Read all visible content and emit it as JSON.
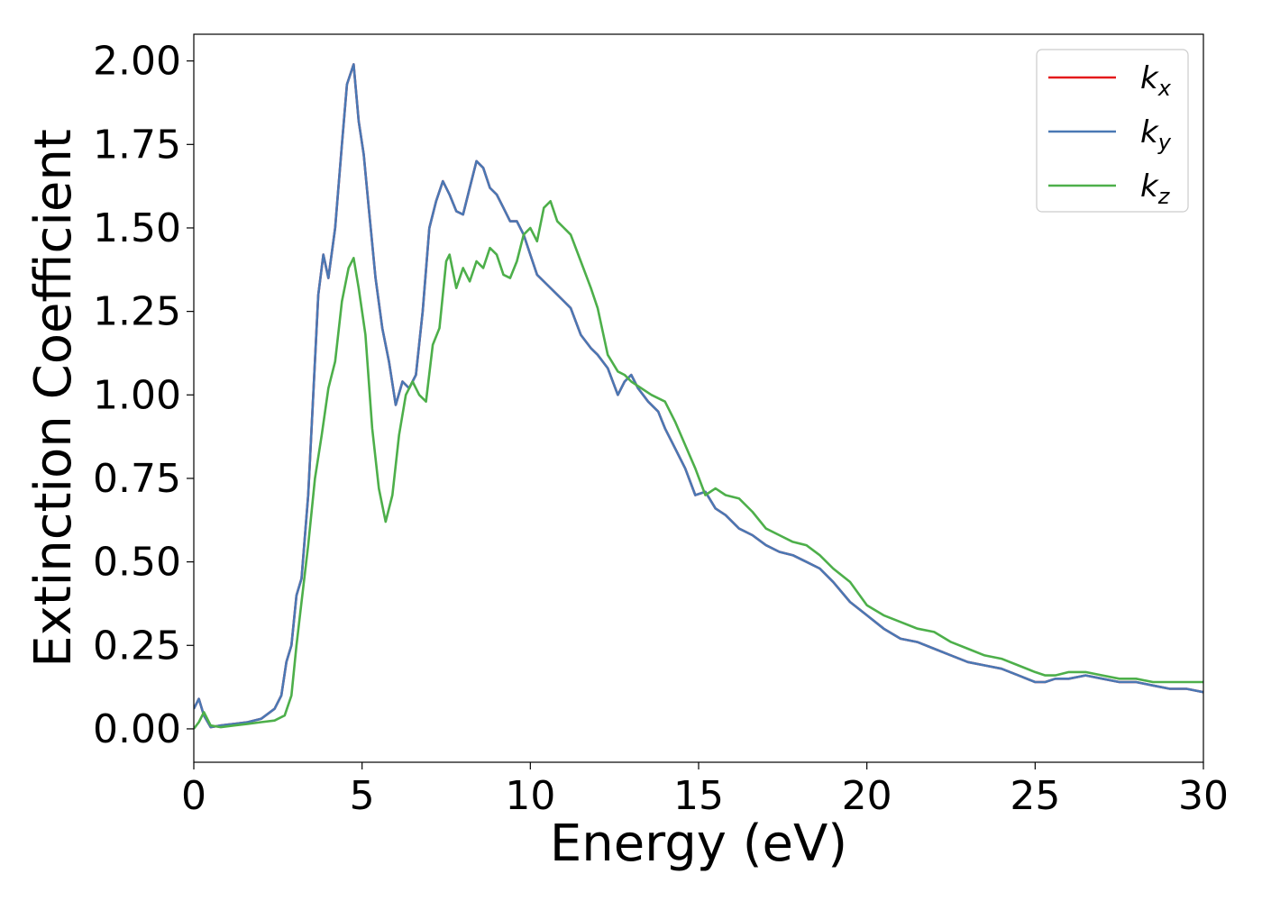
{
  "chart_data": {
    "type": "line",
    "xlabel": "Energy (eV)",
    "ylabel": "Extinction Coefficient",
    "xlim": [
      0,
      30
    ],
    "ylim": [
      -0.1,
      2.08
    ],
    "xticks": [
      0,
      5,
      10,
      15,
      20,
      25,
      30
    ],
    "xtick_labels": [
      "0",
      "5",
      "10",
      "15",
      "20",
      "25",
      "30"
    ],
    "yticks": [
      0.0,
      0.25,
      0.5,
      0.75,
      1.0,
      1.25,
      1.5,
      1.75,
      2.0
    ],
    "ytick_labels": [
      "0.00",
      "0.25",
      "0.50",
      "0.75",
      "1.00",
      "1.25",
      "1.50",
      "1.75",
      "2.00"
    ],
    "grid": false,
    "legend_position": "top-right",
    "series": [
      {
        "name": "k_x",
        "legend_base": "k",
        "legend_sub": "x",
        "color": "#e41a1c",
        "x": [
          0,
          0.15,
          0.3,
          0.5,
          0.8,
          1.2,
          1.6,
          2.0,
          2.4,
          2.6,
          2.75,
          2.9,
          3.05,
          3.2,
          3.4,
          3.55,
          3.7,
          3.85,
          4.0,
          4.2,
          4.4,
          4.55,
          4.75,
          4.9,
          5.05,
          5.2,
          5.4,
          5.6,
          5.8,
          6.0,
          6.2,
          6.4,
          6.6,
          6.8,
          7.0,
          7.2,
          7.4,
          7.6,
          7.8,
          8.0,
          8.2,
          8.4,
          8.6,
          8.8,
          9.0,
          9.2,
          9.4,
          9.6,
          9.8,
          10.0,
          10.2,
          10.5,
          10.8,
          11.0,
          11.2,
          11.5,
          11.8,
          12.0,
          12.3,
          12.6,
          12.8,
          13.0,
          13.2,
          13.5,
          13.8,
          14.0,
          14.3,
          14.6,
          14.9,
          15.2,
          15.5,
          15.8,
          16.2,
          16.6,
          17.0,
          17.4,
          17.8,
          18.2,
          18.6,
          19.0,
          19.5,
          20.0,
          20.5,
          21.0,
          21.5,
          22.0,
          22.5,
          23.0,
          23.5,
          24.0,
          24.5,
          25.0,
          25.3,
          25.6,
          26.0,
          26.5,
          27.0,
          27.5,
          28.0,
          28.5,
          29.0,
          29.5,
          30.0
        ],
        "values": [
          0.06,
          0.09,
          0.04,
          0.005,
          0.01,
          0.015,
          0.02,
          0.03,
          0.06,
          0.1,
          0.2,
          0.25,
          0.4,
          0.45,
          0.7,
          1.0,
          1.3,
          1.42,
          1.35,
          1.5,
          1.75,
          1.93,
          1.99,
          1.82,
          1.72,
          1.56,
          1.35,
          1.2,
          1.1,
          0.97,
          1.04,
          1.02,
          1.06,
          1.25,
          1.5,
          1.58,
          1.64,
          1.6,
          1.55,
          1.54,
          1.62,
          1.7,
          1.68,
          1.62,
          1.6,
          1.56,
          1.52,
          1.52,
          1.48,
          1.42,
          1.36,
          1.33,
          1.3,
          1.28,
          1.26,
          1.18,
          1.14,
          1.12,
          1.08,
          1.0,
          1.04,
          1.06,
          1.02,
          0.98,
          0.95,
          0.9,
          0.84,
          0.78,
          0.7,
          0.71,
          0.66,
          0.64,
          0.6,
          0.58,
          0.55,
          0.53,
          0.52,
          0.5,
          0.48,
          0.44,
          0.38,
          0.34,
          0.3,
          0.27,
          0.26,
          0.24,
          0.22,
          0.2,
          0.19,
          0.18,
          0.16,
          0.14,
          0.14,
          0.15,
          0.15,
          0.16,
          0.15,
          0.14,
          0.14,
          0.13,
          0.12,
          0.12,
          0.11
        ]
      },
      {
        "name": "k_y",
        "legend_base": "k",
        "legend_sub": "y",
        "color": "#4a78b4",
        "x": [
          0,
          0.15,
          0.3,
          0.5,
          0.8,
          1.2,
          1.6,
          2.0,
          2.4,
          2.6,
          2.75,
          2.9,
          3.05,
          3.2,
          3.4,
          3.55,
          3.7,
          3.85,
          4.0,
          4.2,
          4.4,
          4.55,
          4.75,
          4.9,
          5.05,
          5.2,
          5.4,
          5.6,
          5.8,
          6.0,
          6.2,
          6.4,
          6.6,
          6.8,
          7.0,
          7.2,
          7.4,
          7.6,
          7.8,
          8.0,
          8.2,
          8.4,
          8.6,
          8.8,
          9.0,
          9.2,
          9.4,
          9.6,
          9.8,
          10.0,
          10.2,
          10.5,
          10.8,
          11.0,
          11.2,
          11.5,
          11.8,
          12.0,
          12.3,
          12.6,
          12.8,
          13.0,
          13.2,
          13.5,
          13.8,
          14.0,
          14.3,
          14.6,
          14.9,
          15.2,
          15.5,
          15.8,
          16.2,
          16.6,
          17.0,
          17.4,
          17.8,
          18.2,
          18.6,
          19.0,
          19.5,
          20.0,
          20.5,
          21.0,
          21.5,
          22.0,
          22.5,
          23.0,
          23.5,
          24.0,
          24.5,
          25.0,
          25.3,
          25.6,
          26.0,
          26.5,
          27.0,
          27.5,
          28.0,
          28.5,
          29.0,
          29.5,
          30.0
        ],
        "values": [
          0.06,
          0.09,
          0.04,
          0.005,
          0.01,
          0.015,
          0.02,
          0.03,
          0.06,
          0.1,
          0.2,
          0.25,
          0.4,
          0.45,
          0.7,
          1.0,
          1.3,
          1.42,
          1.35,
          1.5,
          1.75,
          1.93,
          1.99,
          1.82,
          1.72,
          1.56,
          1.35,
          1.2,
          1.1,
          0.97,
          1.04,
          1.02,
          1.06,
          1.25,
          1.5,
          1.58,
          1.64,
          1.6,
          1.55,
          1.54,
          1.62,
          1.7,
          1.68,
          1.62,
          1.6,
          1.56,
          1.52,
          1.52,
          1.48,
          1.42,
          1.36,
          1.33,
          1.3,
          1.28,
          1.26,
          1.18,
          1.14,
          1.12,
          1.08,
          1.0,
          1.04,
          1.06,
          1.02,
          0.98,
          0.95,
          0.9,
          0.84,
          0.78,
          0.7,
          0.71,
          0.66,
          0.64,
          0.6,
          0.58,
          0.55,
          0.53,
          0.52,
          0.5,
          0.48,
          0.44,
          0.38,
          0.34,
          0.3,
          0.27,
          0.26,
          0.24,
          0.22,
          0.2,
          0.19,
          0.18,
          0.16,
          0.14,
          0.14,
          0.15,
          0.15,
          0.16,
          0.15,
          0.14,
          0.14,
          0.13,
          0.12,
          0.12,
          0.11
        ]
      },
      {
        "name": "k_z",
        "legend_base": "k",
        "legend_sub": "z",
        "color": "#4daf4a",
        "x": [
          0,
          0.15,
          0.3,
          0.5,
          0.8,
          1.2,
          1.6,
          2.0,
          2.4,
          2.7,
          2.9,
          3.05,
          3.2,
          3.4,
          3.6,
          3.8,
          4.0,
          4.2,
          4.4,
          4.6,
          4.75,
          4.9,
          5.1,
          5.3,
          5.5,
          5.7,
          5.9,
          6.1,
          6.3,
          6.5,
          6.6,
          6.7,
          6.9,
          7.1,
          7.3,
          7.5,
          7.6,
          7.8,
          8.0,
          8.2,
          8.4,
          8.6,
          8.8,
          9.0,
          9.2,
          9.4,
          9.6,
          9.8,
          10.0,
          10.2,
          10.4,
          10.6,
          10.8,
          11.0,
          11.2,
          11.5,
          11.8,
          12.0,
          12.3,
          12.6,
          12.8,
          13.0,
          13.3,
          13.6,
          14.0,
          14.3,
          14.6,
          14.9,
          15.2,
          15.5,
          15.8,
          16.2,
          16.6,
          17.0,
          17.4,
          17.8,
          18.2,
          18.6,
          19.0,
          19.5,
          20.0,
          20.5,
          21.0,
          21.5,
          22.0,
          22.5,
          23.0,
          23.5,
          24.0,
          24.5,
          25.0,
          25.3,
          25.6,
          26.0,
          26.5,
          27.0,
          27.5,
          28.0,
          28.5,
          29.0,
          29.5,
          30.0
        ],
        "values": [
          0.0,
          0.02,
          0.05,
          0.01,
          0.005,
          0.01,
          0.015,
          0.02,
          0.025,
          0.04,
          0.1,
          0.25,
          0.38,
          0.55,
          0.75,
          0.88,
          1.02,
          1.1,
          1.28,
          1.38,
          1.41,
          1.32,
          1.18,
          0.9,
          0.72,
          0.62,
          0.7,
          0.88,
          1.0,
          1.04,
          1.02,
          1.0,
          0.98,
          1.15,
          1.2,
          1.4,
          1.42,
          1.32,
          1.38,
          1.34,
          1.4,
          1.38,
          1.44,
          1.42,
          1.36,
          1.35,
          1.4,
          1.48,
          1.5,
          1.46,
          1.56,
          1.58,
          1.52,
          1.5,
          1.48,
          1.4,
          1.32,
          1.26,
          1.12,
          1.07,
          1.06,
          1.04,
          1.02,
          1.0,
          0.98,
          0.92,
          0.85,
          0.78,
          0.7,
          0.72,
          0.7,
          0.69,
          0.65,
          0.6,
          0.58,
          0.56,
          0.55,
          0.52,
          0.48,
          0.44,
          0.37,
          0.34,
          0.32,
          0.3,
          0.29,
          0.26,
          0.24,
          0.22,
          0.21,
          0.19,
          0.17,
          0.16,
          0.16,
          0.17,
          0.17,
          0.16,
          0.15,
          0.15,
          0.14,
          0.14,
          0.14,
          0.14
        ]
      }
    ]
  }
}
